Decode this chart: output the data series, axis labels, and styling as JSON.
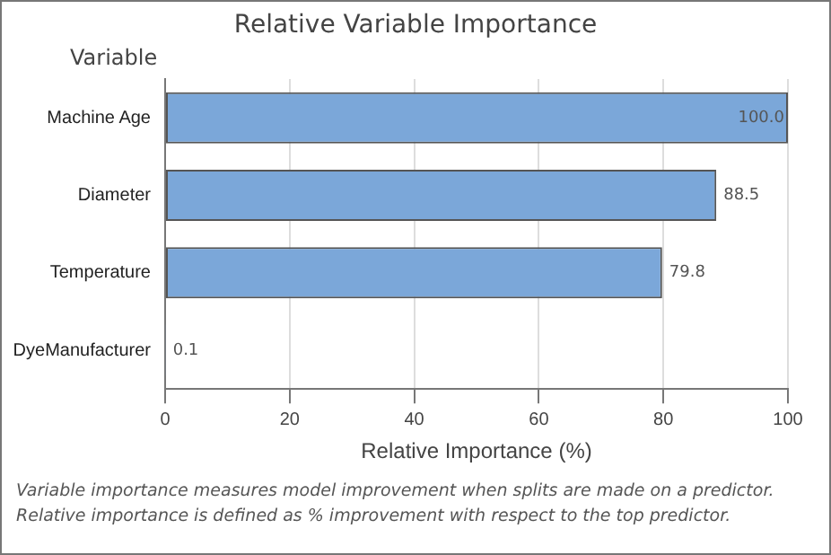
{
  "chart_data": {
    "type": "bar",
    "orientation": "horizontal",
    "title": "Relative Variable Importance",
    "ylabel": "Variable",
    "xlabel": "Relative Importance (%)",
    "categories": [
      "Machine Age",
      "Diameter",
      "Temperature",
      "DyeManufacturer"
    ],
    "values": [
      100,
      88.5,
      79.8,
      0.1
    ],
    "value_labels": [
      "100.0",
      "88.5",
      "79.8",
      "0.1"
    ],
    "color": "#7ba7d9",
    "xlim": [
      0,
      100
    ],
    "xticks": [
      0,
      20,
      40,
      60,
      80,
      100
    ],
    "grid": "x",
    "legend": false,
    "annotations": [
      "Variable importance measures model improvement when splits are made on a predictor.",
      "Relative importance is defined as % improvement with respect to the top predictor."
    ]
  }
}
